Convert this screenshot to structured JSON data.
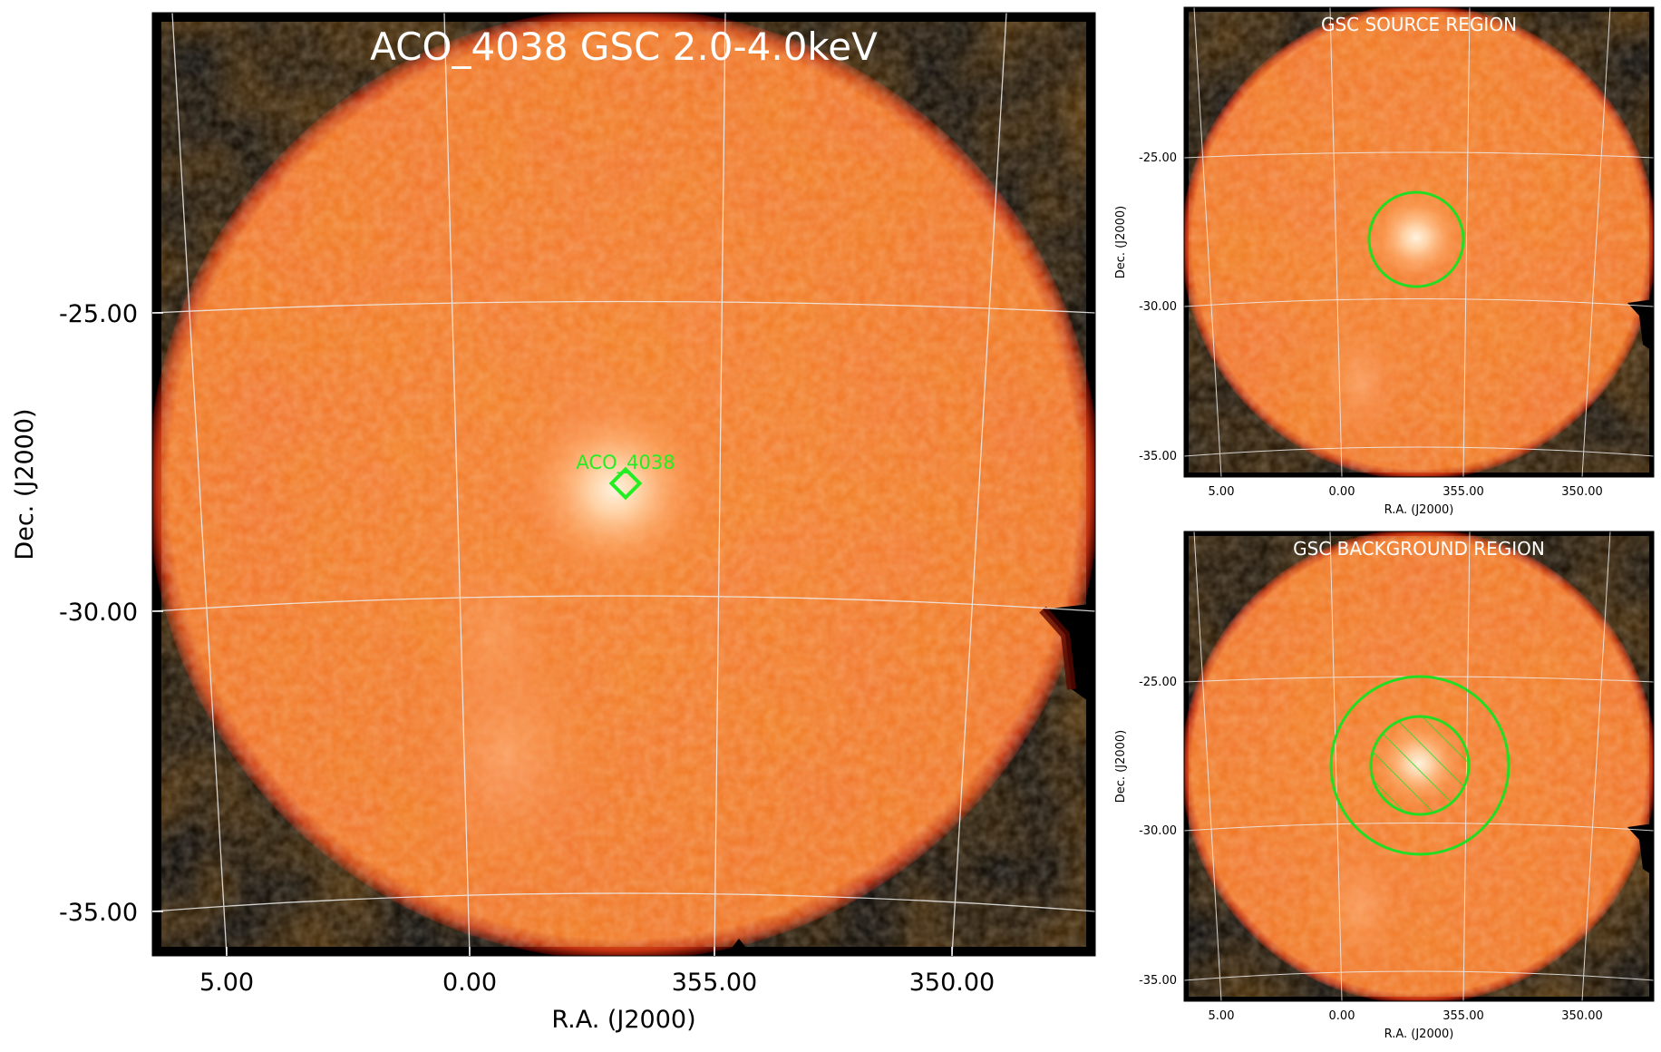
{
  "main_panel": {
    "title": "ACO_4038 GSC 2.0-4.0keV",
    "source_label": "ACO_4038",
    "xlabel": "R.A. (J2000)",
    "ylabel": "Dec. (J2000)",
    "ra_ticks": [
      "5.00",
      "0.00",
      "355.00",
      "350.00"
    ],
    "dec_ticks": [
      "-25.00",
      "-30.00",
      "-35.00"
    ]
  },
  "source_panel": {
    "title": "GSC SOURCE REGION",
    "xlabel": "R.A. (J2000)",
    "ylabel": "Dec. (J2000)",
    "ra_ticks": [
      "5.00",
      "0.00",
      "355.00",
      "350.00"
    ],
    "dec_ticks": [
      "-25.00",
      "-30.00",
      "-35.00"
    ]
  },
  "background_panel": {
    "title": "GSC BACKGROUND REGION",
    "xlabel": "R.A. (J2000)",
    "ylabel": "Dec. (J2000)",
    "ra_ticks": [
      "5.00",
      "0.00",
      "355.00",
      "350.00"
    ],
    "dec_ticks": [
      "-25.00",
      "-30.00",
      "-35.00"
    ]
  },
  "colors": {
    "image_base": "#f47a2e",
    "image_edge": "#6a0a00",
    "sky_background": "#000000",
    "region": "#22dd22",
    "grid": "#e8e8e8"
  }
}
